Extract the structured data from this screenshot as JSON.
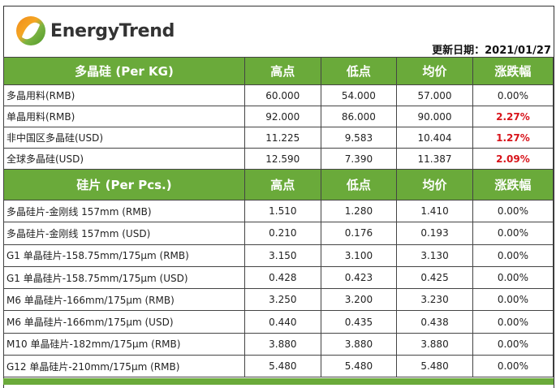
{
  "brand": {
    "name": "EnergyTrend"
  },
  "update": "更新日期：2021/01/27",
  "colors": {
    "header": "#6aaa3a",
    "up": "#d8141b"
  },
  "columns": [
    "高点",
    "低点",
    "均价",
    "涨跌幅"
  ],
  "sections": [
    {
      "title": "多晶硅 (Per KG)",
      "rows": [
        {
          "name": "多晶用料(RMB)",
          "high": "60.000",
          "low": "54.000",
          "avg": "57.000",
          "change": "0.00%",
          "up": false
        },
        {
          "name": "单晶用料(RMB)",
          "high": "92.000",
          "low": "86.000",
          "avg": "90.000",
          "change": "2.27%",
          "up": true
        },
        {
          "name": "非中国区多晶硅(USD)",
          "high": "11.225",
          "low": "9.583",
          "avg": "10.404",
          "change": "1.27%",
          "up": true
        },
        {
          "name": "全球多晶硅(USD)",
          "high": "12.590",
          "low": "7.390",
          "avg": "11.387",
          "change": "2.09%",
          "up": true
        }
      ]
    },
    {
      "title": "硅片 (Per Pcs.)",
      "rows": [
        {
          "name": "多晶硅片-金刚线 157mm (RMB)",
          "high": "1.510",
          "low": "1.280",
          "avg": "1.410",
          "change": "0.00%",
          "up": false
        },
        {
          "name": "多晶硅片-金刚线 157mm (USD)",
          "high": "0.210",
          "low": "0.176",
          "avg": "0.193",
          "change": "0.00%",
          "up": false
        },
        {
          "name": "G1 单晶硅片-158.75mm/175μm (RMB)",
          "high": "3.150",
          "low": "3.100",
          "avg": "3.130",
          "change": "0.00%",
          "up": false
        },
        {
          "name": "G1 单晶硅片-158.75mm/175μm (USD)",
          "high": "0.428",
          "low": "0.423",
          "avg": "0.425",
          "change": "0.00%",
          "up": false
        },
        {
          "name": "M6 单晶硅片-166mm/175μm (RMB)",
          "high": "3.250",
          "low": "3.200",
          "avg": "3.230",
          "change": "0.00%",
          "up": false
        },
        {
          "name": "M6 单晶硅片-166mm/175μm (USD)",
          "high": "0.440",
          "low": "0.435",
          "avg": "0.438",
          "change": "0.00%",
          "up": false
        },
        {
          "name": "M10 单晶硅片-182mm/175μm (RMB)",
          "high": "3.880",
          "low": "3.880",
          "avg": "3.880",
          "change": "0.00%",
          "up": false
        },
        {
          "name": "G12 单晶硅片-210mm/175μm  (RMB)",
          "high": "5.480",
          "low": "5.480",
          "avg": "5.480",
          "change": "0.00%",
          "up": false
        }
      ]
    }
  ]
}
